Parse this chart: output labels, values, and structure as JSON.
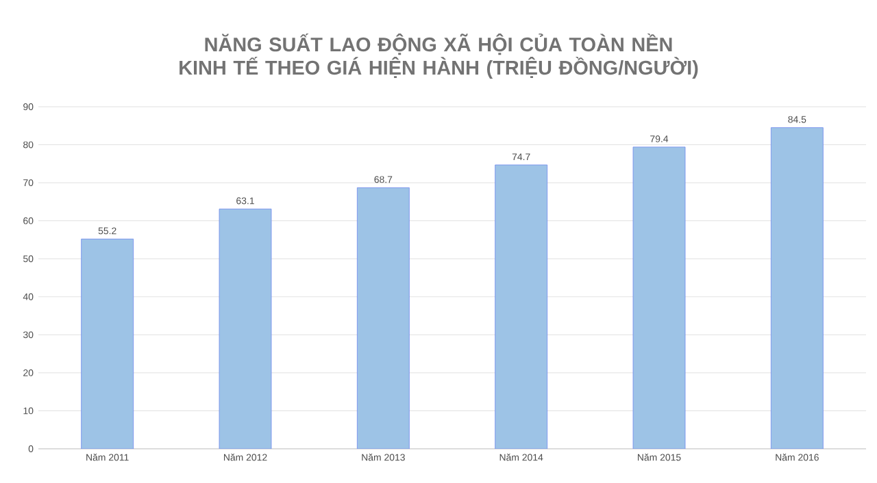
{
  "chart_data": {
    "type": "bar",
    "title": "NĂNG SUẤT LAO ĐỘNG XÃ HỘI CỦA TOÀN NỀN KINH TẾ THEO GIÁ HIỆN HÀNH (TRIỆU ĐỒNG/NGƯỜI)",
    "categories": [
      "Năm 2011",
      "Năm 2012",
      "Năm 2013",
      "Năm 2014",
      "Năm 2015",
      "Năm 2016"
    ],
    "values": [
      55.2,
      63.1,
      68.7,
      74.7,
      79.4,
      84.5
    ],
    "color": "#9dc3e6",
    "ylim": [
      0,
      90
    ],
    "yticks": [
      0,
      10,
      20,
      30,
      40,
      50,
      60,
      70,
      80,
      90
    ],
    "grid": "y",
    "data_labels": true
  }
}
